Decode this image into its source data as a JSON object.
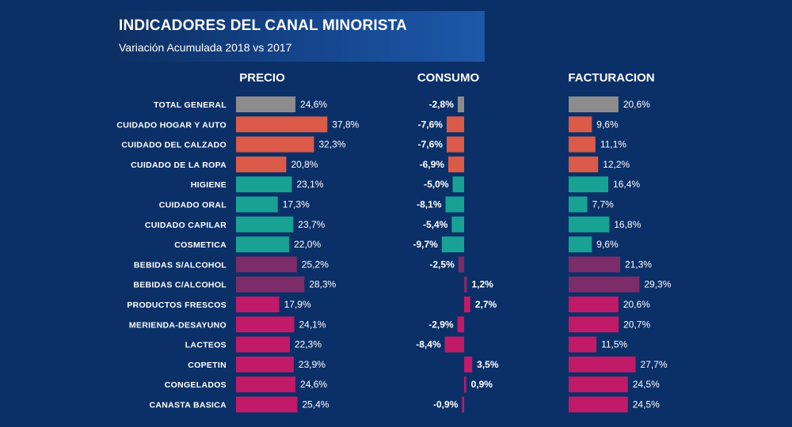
{
  "header": {
    "title": "INDICADORES DEL CANAL MINORISTA",
    "subtitle": "Variación  Acumulada 2018 vs 2017"
  },
  "colors": {
    "background": "#0b3068",
    "gray": "#8c8c8c",
    "red": "#db5a48",
    "teal": "#17a294",
    "purple": "#7c2c69",
    "magenta": "#c11a68"
  },
  "chart_data": {
    "type": "bar",
    "orientation": "horizontal",
    "categories": [
      "TOTAL GENERAL",
      "CUIDADO HOGAR Y AUTO",
      "CUIDADO DEL CALZADO",
      "CUIDADO DE LA ROPA",
      "HIGIENE",
      "CUIDADO ORAL",
      "CUIDADO CAPILAR",
      "COSMETICA",
      "BEBIDAS S/ALCOHOL",
      "BEBIDAS C/ALCOHOL",
      "PRODUCTOS FRESCOS",
      "MERIENDA-DESAYUNO",
      "LACTEOS",
      "COPETIN",
      "CONGELADOS",
      "CANASTA BASICA"
    ],
    "category_colors": [
      "gray",
      "red",
      "red",
      "red",
      "teal",
      "teal",
      "teal",
      "teal",
      "purple",
      "purple",
      "magenta",
      "magenta",
      "magenta",
      "magenta",
      "magenta",
      "magenta"
    ],
    "series": [
      {
        "name": "PRECIO",
        "values": [
          24.6,
          37.8,
          32.3,
          20.8,
          23.1,
          17.3,
          23.7,
          22.0,
          25.2,
          28.3,
          17.9,
          24.1,
          22.3,
          23.9,
          24.6,
          25.4
        ],
        "labels": [
          "24,6%",
          "37,8%",
          "32,3%",
          "20,8%",
          "23,1%",
          "17,3%",
          "23,7%",
          "22,0%",
          "25,2%",
          "28,3%",
          "17,9%",
          "24,1%",
          "22,3%",
          "23,9%",
          "24,6%",
          "25,4%"
        ]
      },
      {
        "name": "CONSUMO",
        "values": [
          -2.8,
          -7.6,
          -7.6,
          -6.9,
          -5.0,
          -8.1,
          -5.4,
          -9.7,
          -2.5,
          1.2,
          2.7,
          -2.9,
          -8.4,
          3.5,
          0.9,
          -0.9
        ],
        "labels": [
          "-2,8%",
          "-7,6%",
          "-7,6%",
          "-6,9%",
          "-5,0%",
          "-8,1%",
          "-5,4%",
          "-9,7%",
          "-2,5%",
          "1,2%",
          "2,7%",
          "-2,9%",
          "-8,4%",
          "3,5%",
          "0,9%",
          "-0,9%"
        ]
      },
      {
        "name": "FACTURACION",
        "values": [
          20.6,
          9.6,
          11.1,
          12.2,
          16.4,
          7.7,
          16.8,
          9.6,
          21.3,
          29.3,
          20.6,
          20.7,
          11.5,
          27.7,
          24.5,
          24.5
        ],
        "labels": [
          "20,6%",
          "9,6%",
          "11,1%",
          "12,2%",
          "16,4%",
          "7,7%",
          "16,8%",
          "9,6%",
          "21,3%",
          "29,3%",
          "20,6%",
          "20,7%",
          "11,5%",
          "27,7%",
          "24,5%",
          "24,5%"
        ]
      }
    ]
  }
}
